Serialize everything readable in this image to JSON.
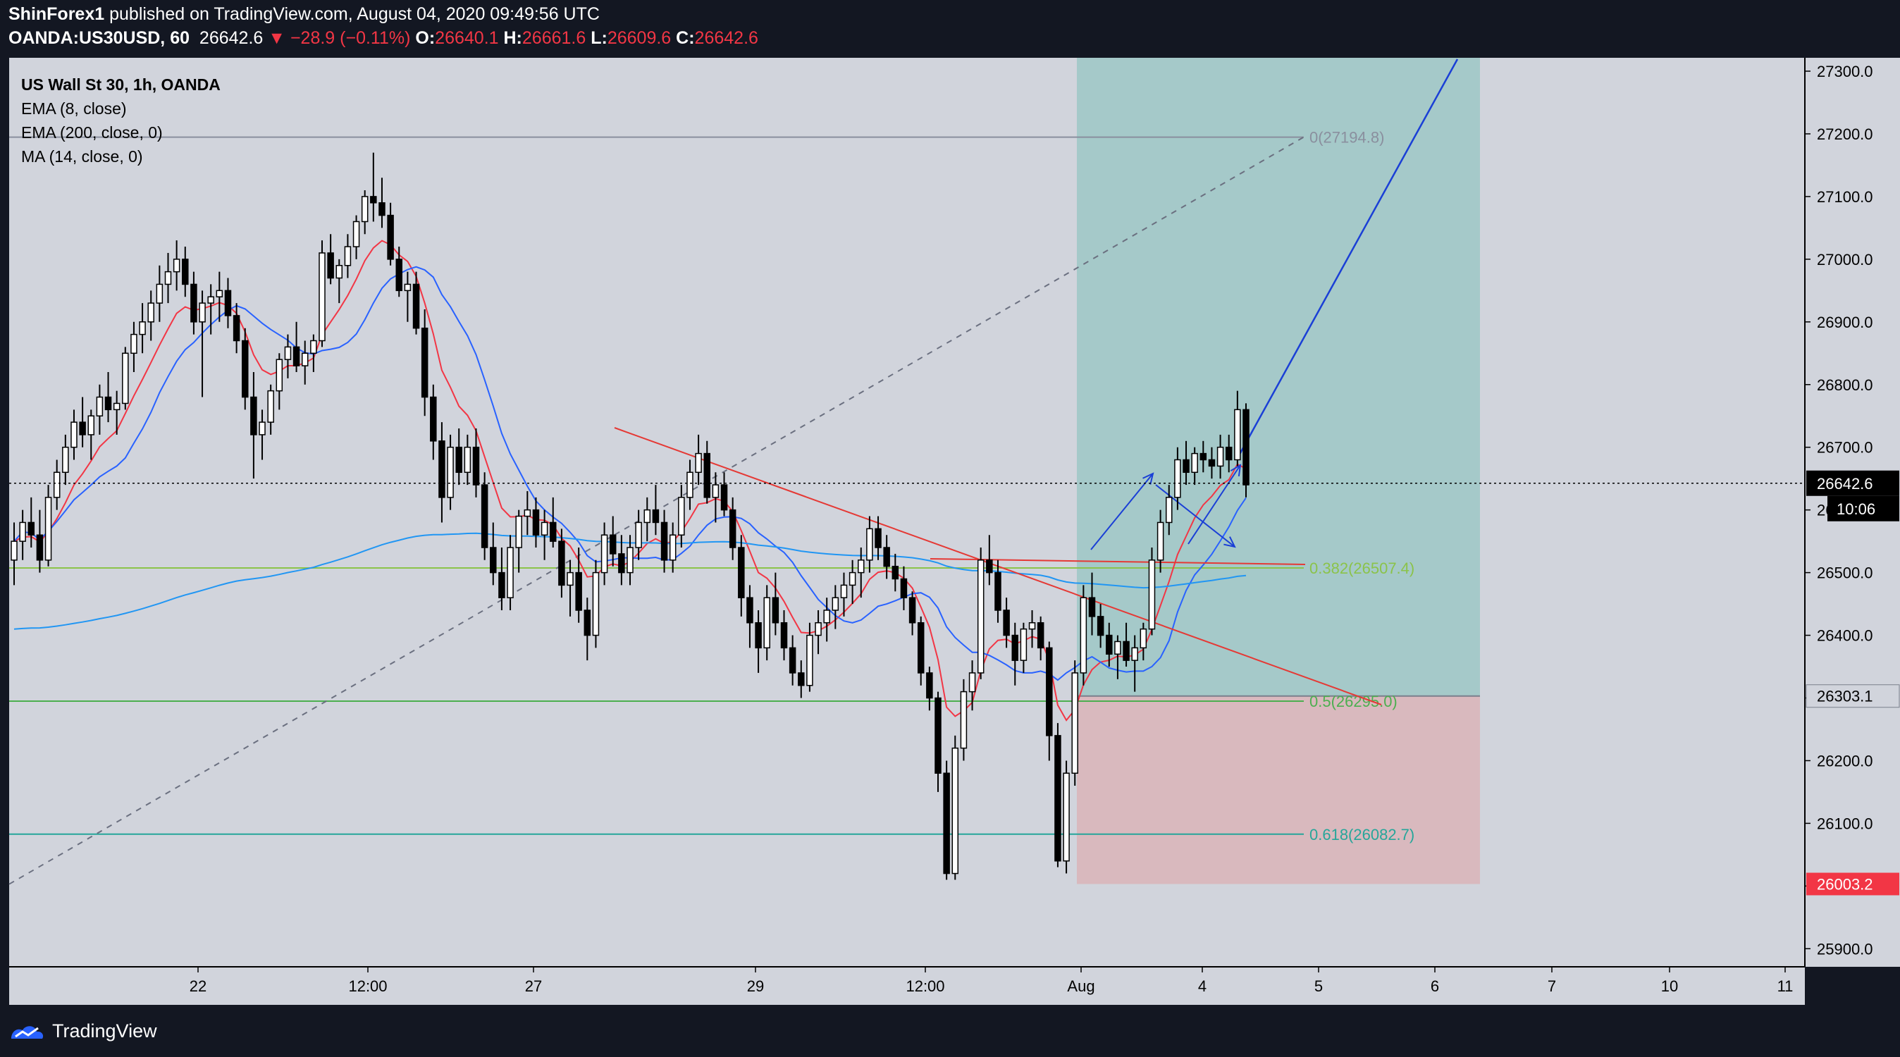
{
  "header": {
    "line1": {
      "author": "ShinForex1",
      "rest": " published on TradingView.com, August 04, 2020 09:49:56 UTC"
    },
    "line2": {
      "symbol": "OANDA:US30USD, 60",
      "price": "26642.6",
      "change": "▼ −28.9 (−0.11%)",
      "o_label": "O:",
      "o": "26640.1",
      "h_label": "H:",
      "h": "26661.6",
      "l_label": "L:",
      "l": "26609.6",
      "c_label": "C:",
      "c": "26642.6"
    }
  },
  "legend": [
    "US Wall St 30, 1h, OANDA",
    "EMA (8, close)",
    "EMA (200, close, 0)",
    "MA (14, close, 0)"
  ],
  "branding": {
    "name": "TradingView"
  },
  "colors": {
    "background": "#131722",
    "plot": "#d1d4dc",
    "up": "#ffffff",
    "down": "#000000",
    "ema8": "#f23645",
    "ema200": "#2196f3",
    "ma14": "#2962ff",
    "profit_zone": "#a5c9c9",
    "loss_zone": "#d9b9be",
    "red_badge": "#f23645"
  },
  "chart_data": {
    "type": "candlestick",
    "symbol": "OANDA:US30USD",
    "timeframe": "60",
    "x_tick_labels": [
      "22",
      "12:00",
      "27",
      "29",
      "12:00",
      "Aug",
      "4",
      "5",
      "6",
      "7",
      "10",
      "11"
    ],
    "y_ticks": [
      25900,
      26000,
      26100,
      26200,
      26300,
      26400,
      26500,
      26600,
      26700,
      26800,
      26900,
      27000,
      27100,
      27200,
      27300
    ],
    "y_tick_labels": [
      "25900.0",
      "26000.0",
      "26100.0",
      "26200.0",
      "26300.0",
      "26400.0",
      "26500.0",
      "26600.0",
      "26700.0",
      "26800.0",
      "26900.0",
      "27000.0",
      "27100.0",
      "27200.0",
      "27300.0"
    ],
    "ylim": [
      25875,
      27325
    ],
    "last_price": {
      "value": 26642.6,
      "label": "26642.6",
      "countdown": "10:06"
    },
    "price_badges": [
      {
        "value": 26303.1,
        "label": "26303.1",
        "kind": "neutral"
      },
      {
        "value": 26003.2,
        "label": "26003.2",
        "kind": "stop"
      }
    ],
    "fibonacci": [
      {
        "level": "0",
        "price": 27194.8,
        "label": "0(27194.8)",
        "color": "#8a8f9e"
      },
      {
        "level": "0.382",
        "price": 26507.4,
        "label": "0.382(26507.4)",
        "color": "#8bc34a"
      },
      {
        "level": "0.5",
        "price": 26295.0,
        "label": "0.5(26295.0)",
        "color": "#4caf50"
      },
      {
        "level": "0.618",
        "price": 26082.7,
        "label": "0.618(26082.7)",
        "color": "#26a69a"
      }
    ],
    "position": {
      "entry": 26303.1,
      "target": 27310,
      "stop": 26003.2
    },
    "candles": [
      [
        26520,
        26580,
        26480,
        26550
      ],
      [
        26550,
        26600,
        26520,
        26580
      ],
      [
        26580,
        26620,
        26540,
        26560
      ],
      [
        26560,
        26600,
        26500,
        26520
      ],
      [
        26520,
        26640,
        26510,
        26620
      ],
      [
        26620,
        26680,
        26600,
        26660
      ],
      [
        26660,
        26720,
        26640,
        26700
      ],
      [
        26700,
        26760,
        26680,
        26740
      ],
      [
        26740,
        26780,
        26700,
        26720
      ],
      [
        26720,
        26760,
        26680,
        26750
      ],
      [
        26750,
        26800,
        26720,
        26780
      ],
      [
        26780,
        26820,
        26740,
        26760
      ],
      [
        26760,
        26790,
        26720,
        26770
      ],
      [
        26770,
        26860,
        26760,
        26850
      ],
      [
        26850,
        26900,
        26820,
        26880
      ],
      [
        26880,
        26930,
        26850,
        26900
      ],
      [
        26900,
        26950,
        26870,
        26930
      ],
      [
        26930,
        26990,
        26900,
        26960
      ],
      [
        26960,
        27010,
        26930,
        26980
      ],
      [
        26980,
        27030,
        26950,
        27000
      ],
      [
        27000,
        27020,
        26940,
        26960
      ],
      [
        26960,
        26980,
        26880,
        26900
      ],
      [
        26900,
        26950,
        26780,
        26930
      ],
      [
        26930,
        26960,
        26880,
        26940
      ],
      [
        26940,
        26980,
        26900,
        26950
      ],
      [
        26950,
        26970,
        26890,
        26910
      ],
      [
        26910,
        26930,
        26850,
        26870
      ],
      [
        26870,
        26890,
        26760,
        26780
      ],
      [
        26780,
        26820,
        26650,
        26720
      ],
      [
        26720,
        26760,
        26680,
        26740
      ],
      [
        26740,
        26800,
        26720,
        26790
      ],
      [
        26790,
        26850,
        26760,
        26840
      ],
      [
        26840,
        26880,
        26810,
        26860
      ],
      [
        26860,
        26900,
        26820,
        26830
      ],
      [
        26830,
        26870,
        26800,
        26850
      ],
      [
        26850,
        26880,
        26820,
        26870
      ],
      [
        26870,
        27030,
        26860,
        27010
      ],
      [
        27010,
        27040,
        26960,
        26970
      ],
      [
        26970,
        27000,
        26930,
        26990
      ],
      [
        26990,
        27040,
        26970,
        27020
      ],
      [
        27020,
        27070,
        27000,
        27060
      ],
      [
        27060,
        27110,
        27040,
        27100
      ],
      [
        27100,
        27170,
        27060,
        27090
      ],
      [
        27090,
        27130,
        27050,
        27070
      ],
      [
        27070,
        27090,
        26990,
        27000
      ],
      [
        27000,
        27020,
        26940,
        26950
      ],
      [
        26950,
        26980,
        26900,
        26960
      ],
      [
        26960,
        26980,
        26880,
        26890
      ],
      [
        26890,
        26920,
        26750,
        26780
      ],
      [
        26780,
        26800,
        26680,
        26710
      ],
      [
        26710,
        26740,
        26580,
        26620
      ],
      [
        26620,
        26720,
        26600,
        26700
      ],
      [
        26700,
        26730,
        26640,
        26660
      ],
      [
        26660,
        26720,
        26640,
        26700
      ],
      [
        26700,
        26730,
        26620,
        26640
      ],
      [
        26640,
        26660,
        26520,
        26540
      ],
      [
        26540,
        26580,
        26480,
        26500
      ],
      [
        26500,
        26540,
        26440,
        26460
      ],
      [
        26460,
        26560,
        26440,
        26540
      ],
      [
        26540,
        26600,
        26500,
        26590
      ],
      [
        26590,
        26630,
        26560,
        26600
      ],
      [
        26600,
        26620,
        26540,
        26560
      ],
      [
        26560,
        26600,
        26520,
        26580
      ],
      [
        26580,
        26620,
        26540,
        26550
      ],
      [
        26550,
        26570,
        26460,
        26480
      ],
      [
        26480,
        26520,
        26430,
        26500
      ],
      [
        26500,
        26540,
        26420,
        26440
      ],
      [
        26440,
        26460,
        26360,
        26400
      ],
      [
        26400,
        26520,
        26380,
        26500
      ],
      [
        26500,
        26580,
        26480,
        26560
      ],
      [
        26560,
        26590,
        26510,
        26530
      ],
      [
        26530,
        26560,
        26480,
        26500
      ],
      [
        26500,
        26560,
        26480,
        26540
      ],
      [
        26540,
        26600,
        26520,
        26580
      ],
      [
        26580,
        26620,
        26550,
        26600
      ],
      [
        26600,
        26640,
        26560,
        26580
      ],
      [
        26580,
        26600,
        26500,
        26520
      ],
      [
        26520,
        26580,
        26500,
        26560
      ],
      [
        26560,
        26640,
        26540,
        26620
      ],
      [
        26620,
        26680,
        26600,
        26660
      ],
      [
        26660,
        26720,
        26640,
        26690
      ],
      [
        26690,
        26710,
        26610,
        26620
      ],
      [
        26620,
        26660,
        26580,
        26640
      ],
      [
        26640,
        26660,
        26590,
        26600
      ],
      [
        26600,
        26620,
        26520,
        26540
      ],
      [
        26540,
        26560,
        26430,
        26460
      ],
      [
        26460,
        26480,
        26380,
        26420
      ],
      [
        26420,
        26440,
        26340,
        26380
      ],
      [
        26380,
        26480,
        26360,
        26460
      ],
      [
        26460,
        26500,
        26400,
        26420
      ],
      [
        26420,
        26440,
        26360,
        26380
      ],
      [
        26380,
        26400,
        26320,
        26340
      ],
      [
        26340,
        26360,
        26300,
        26320
      ],
      [
        26320,
        26420,
        26310,
        26400
      ],
      [
        26400,
        26440,
        26370,
        26420
      ],
      [
        26420,
        26460,
        26390,
        26440
      ],
      [
        26440,
        26480,
        26410,
        26460
      ],
      [
        26460,
        26500,
        26430,
        26480
      ],
      [
        26480,
        26520,
        26450,
        26500
      ],
      [
        26500,
        26540,
        26460,
        26520
      ],
      [
        26520,
        26590,
        26500,
        26570
      ],
      [
        26570,
        26590,
        26520,
        26540
      ],
      [
        26540,
        26560,
        26490,
        26510
      ],
      [
        26510,
        26530,
        26470,
        26490
      ],
      [
        26490,
        26510,
        26440,
        26460
      ],
      [
        26460,
        26470,
        26400,
        26420
      ],
      [
        26420,
        26430,
        26320,
        26340
      ],
      [
        26340,
        26350,
        26280,
        26300
      ],
      [
        26300,
        26310,
        26150,
        26180
      ],
      [
        26180,
        26200,
        26010,
        26020
      ],
      [
        26020,
        26240,
        26010,
        26220
      ],
      [
        26220,
        26330,
        26200,
        26310
      ],
      [
        26310,
        26360,
        26280,
        26340
      ],
      [
        26340,
        26540,
        26330,
        26520
      ],
      [
        26520,
        26560,
        26480,
        26500
      ],
      [
        26500,
        26520,
        26420,
        26440
      ],
      [
        26440,
        26460,
        26380,
        26400
      ],
      [
        26400,
        26420,
        26320,
        26360
      ],
      [
        26360,
        26420,
        26340,
        26410
      ],
      [
        26410,
        26440,
        26380,
        26420
      ],
      [
        26420,
        26430,
        26360,
        26380
      ],
      [
        26380,
        26390,
        26200,
        26240
      ],
      [
        26240,
        26260,
        26030,
        26040
      ],
      [
        26040,
        26200,
        26020,
        26180
      ],
      [
        26180,
        26360,
        26160,
        26340
      ],
      [
        26340,
        26480,
        26320,
        26460
      ],
      [
        26460,
        26500,
        26400,
        26430
      ],
      [
        26430,
        26450,
        26380,
        26400
      ],
      [
        26400,
        26420,
        26350,
        26370
      ],
      [
        26370,
        26400,
        26330,
        26390
      ],
      [
        26390,
        26420,
        26350,
        26360
      ],
      [
        26360,
        26400,
        26310,
        26380
      ],
      [
        26380,
        26420,
        26360,
        26410
      ],
      [
        26410,
        26540,
        26400,
        26520
      ],
      [
        26520,
        26600,
        26500,
        26580
      ],
      [
        26580,
        26640,
        26560,
        26620
      ],
      [
        26620,
        26700,
        26600,
        26680
      ],
      [
        26680,
        26710,
        26640,
        26660
      ],
      [
        26660,
        26700,
        26640,
        26690
      ],
      [
        26690,
        26710,
        26660,
        26680
      ],
      [
        26680,
        26700,
        26650,
        26670
      ],
      [
        26670,
        26720,
        26650,
        26700
      ],
      [
        26700,
        26720,
        26660,
        26680
      ],
      [
        26680,
        26790,
        26670,
        26760
      ],
      [
        26760,
        26770,
        26620,
        26640
      ]
    ]
  }
}
